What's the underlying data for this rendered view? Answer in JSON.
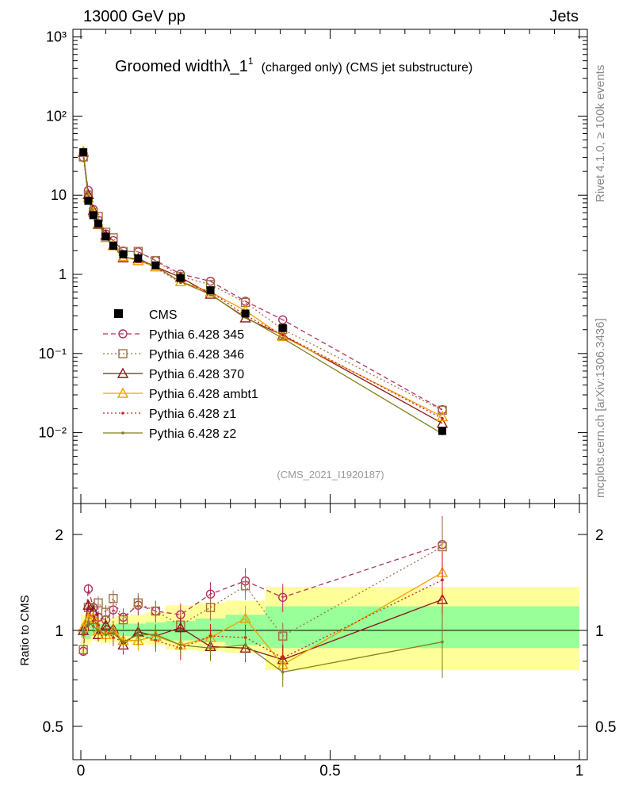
{
  "header": {
    "left": "13000 GeV pp",
    "right": "Jets"
  },
  "side_labels": {
    "top": "Rivet 4.1.0, ≥ 100k events",
    "bottom": "mcplots.cern.ch [arXiv:1306.3436]"
  },
  "chart_data": {
    "type": "line",
    "title": "Groomed width",
    "title_symbol": "λ_1",
    "title_superscript": "1",
    "title_suffix": "(charged only) (CMS jet substructure)",
    "watermark": "(CMS_2021_I1920187)",
    "ylabel_ratio": "Ratio to CMS",
    "xlim": [
      0,
      1
    ],
    "ylim_main": [
      0.001,
      1500
    ],
    "ylim_ratio": [
      0.4,
      2.4
    ],
    "x_ticks": [
      "0",
      "0.5",
      "1"
    ],
    "main_y_ticks": [
      "10³",
      "10²",
      "10",
      "1",
      "10⁻¹",
      "10⁻²"
    ],
    "ratio_y_ticks": [
      "0.5",
      "1",
      "2"
    ],
    "x": [
      0.005,
      0.015,
      0.025,
      0.035,
      0.05,
      0.065,
      0.085,
      0.115,
      0.15,
      0.2,
      0.26,
      0.33,
      0.405,
      0.725
    ],
    "bin_edges": [
      0,
      0.01,
      0.02,
      0.03,
      0.04,
      0.06,
      0.07,
      0.1,
      0.13,
      0.17,
      0.23,
      0.29,
      0.37,
      0.45,
      1.0
    ],
    "band_stat": [
      [
        0.95,
        1.05
      ],
      [
        0.94,
        1.06
      ],
      [
        0.96,
        1.06
      ],
      [
        0.97,
        1.05
      ],
      [
        0.96,
        1.05
      ],
      [
        0.97,
        1.04
      ],
      [
        0.96,
        1.05
      ],
      [
        0.95,
        1.05
      ],
      [
        0.94,
        1.06
      ],
      [
        0.93,
        1.07
      ],
      [
        0.92,
        1.09
      ],
      [
        0.9,
        1.12
      ],
      [
        0.88,
        1.19
      ],
      [
        0.88,
        1.19
      ]
    ],
    "band_syst": [
      [
        0.83,
        1.12
      ],
      [
        0.9,
        1.12
      ],
      [
        0.93,
        1.1
      ],
      [
        0.92,
        1.09
      ],
      [
        0.91,
        1.09
      ],
      [
        0.92,
        1.1
      ],
      [
        0.92,
        1.11
      ],
      [
        0.91,
        1.12
      ],
      [
        0.9,
        1.14
      ],
      [
        0.87,
        1.2
      ],
      [
        0.86,
        1.22
      ],
      [
        0.85,
        1.24
      ],
      [
        0.75,
        1.37
      ],
      [
        0.75,
        1.37
      ]
    ],
    "data": {
      "name": "CMS",
      "values": [
        35,
        8.5,
        5.6,
        4.4,
        3.0,
        2.3,
        1.8,
        1.6,
        1.3,
        0.9,
        0.63,
        0.32,
        0.21,
        0.0105
      ]
    },
    "series": [
      {
        "name": "Pythia 6.428 345",
        "color": "#b03060",
        "marker": "circle",
        "dash": "6,4",
        "ratios": [
          0.86,
          1.35,
          1.18,
          1.1,
          1.08,
          1.16,
          1.1,
          1.2,
          1.15,
          1.12,
          1.3,
          1.43,
          1.27,
          1.86
        ]
      },
      {
        "name": "Pythia 6.428 346",
        "color": "#a07040",
        "marker": "square",
        "dash": "2,3",
        "ratios": [
          0.87,
          1.18,
          1.08,
          1.22,
          1.14,
          1.26,
          1.08,
          1.22,
          1.15,
          1.04,
          1.18,
          1.38,
          0.96,
          1.83
        ]
      },
      {
        "name": "Pythia 6.428 370",
        "color": "#8b1a1a",
        "marker": "triangle",
        "dash": "",
        "ratios": [
          1.0,
          1.2,
          1.15,
          0.97,
          1.04,
          1.01,
          0.9,
          0.99,
          0.96,
          1.02,
          0.89,
          0.88,
          0.81,
          1.25
        ]
      },
      {
        "name": "Pythia 6.428 ambt1",
        "color": "#f0a000",
        "marker": "triangle",
        "dash": "",
        "ratios": [
          1.02,
          1.09,
          1.1,
          1.0,
          0.97,
          1.0,
          0.93,
          0.93,
          0.96,
          0.9,
          0.95,
          1.09,
          0.78,
          1.52
        ]
      },
      {
        "name": "Pythia 6.428 z1",
        "color": "#d02020",
        "marker": "dot",
        "dash": "2,3",
        "ratios": [
          0.97,
          1.04,
          1.07,
          1.04,
          1.0,
          0.95,
          0.92,
          0.97,
          0.93,
          0.88,
          0.96,
          0.95,
          0.82,
          1.44
        ]
      },
      {
        "name": "Pythia 6.428 z2",
        "color": "#808020",
        "marker": "dot",
        "dash": "",
        "ratios": [
          0.98,
          1.06,
          1.03,
          1.0,
          0.97,
          0.98,
          0.92,
          0.97,
          0.97,
          0.9,
          0.88,
          0.9,
          0.74,
          0.92
        ]
      }
    ]
  }
}
